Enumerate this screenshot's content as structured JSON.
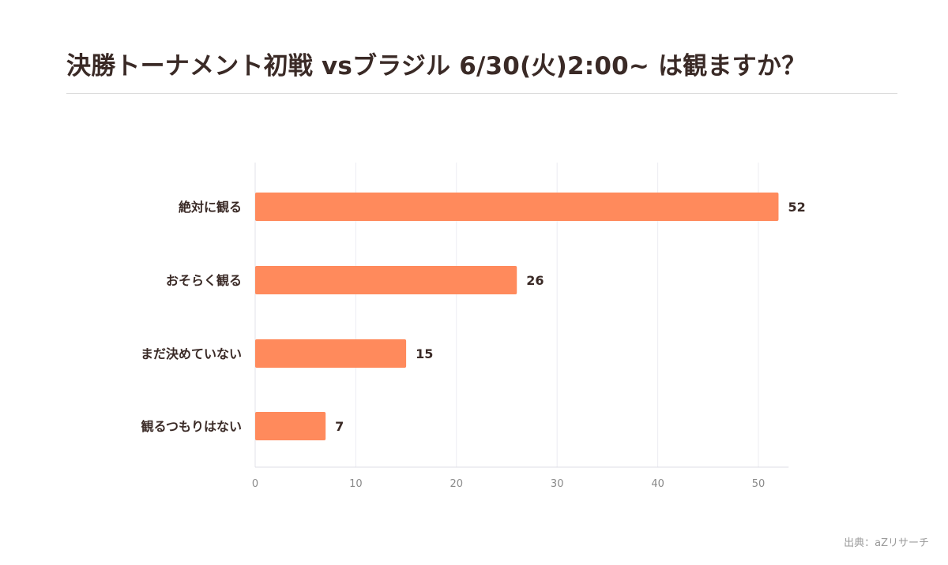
{
  "colors": {
    "bar": "#ff8a5c",
    "text": "#3a2a26",
    "grid": "#ececf2",
    "axis_tick": "#8a8a8a"
  },
  "chart_data": {
    "type": "bar",
    "orientation": "horizontal",
    "title": "決勝トーナメント初戦 vsブラジル 6/30(火)2:00~ は観ますか？",
    "categories": [
      "絶対に観る",
      "おそらく観る",
      "まだ決めていない",
      "観るつもりはない"
    ],
    "values": [
      52,
      26,
      15,
      7
    ],
    "xlim": [
      0,
      53
    ],
    "xticks": [
      0,
      10,
      20,
      30,
      40,
      50
    ],
    "grid": true,
    "data_labels": true,
    "source": "出典：aZリサーチ"
  }
}
